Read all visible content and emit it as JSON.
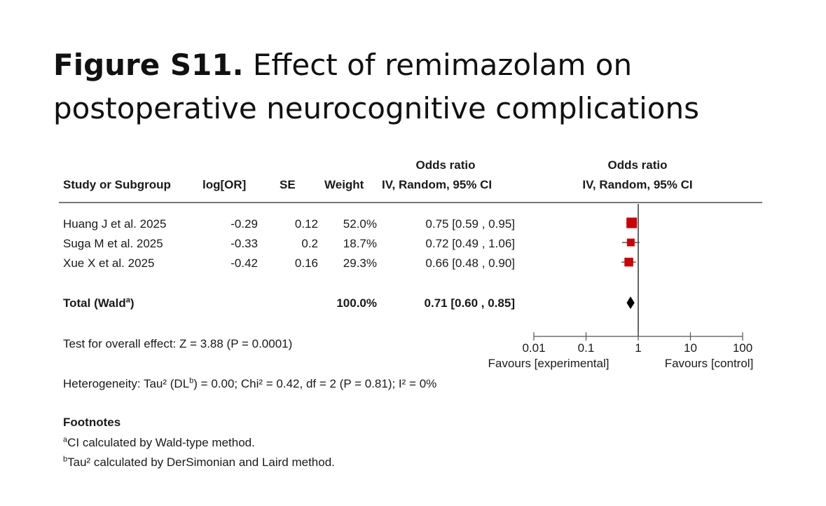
{
  "figure_title": {
    "label": "Figure S11.",
    "text": "Effect of remimazolam on postoperative neurocognitive complications"
  },
  "headers": {
    "study": "Study or Subgroup",
    "logor": "log[OR]",
    "se": "SE",
    "weight": "Weight",
    "or_line1": "Odds ratio",
    "or_line2": "IV, Random, 95% CI",
    "plot_line1": "Odds ratio",
    "plot_line2": "IV, Random, 95% CI"
  },
  "studies": [
    {
      "name": "Huang J et al. 2025",
      "logor": "-0.29",
      "se": "0.12",
      "weight": "52.0%",
      "ci_text": "0.75 [0.59 , 0.95]"
    },
    {
      "name": "Suga M et al. 2025",
      "logor": "-0.33",
      "se": "0.2",
      "weight": "18.7%",
      "ci_text": "0.72 [0.49 , 1.06]"
    },
    {
      "name": "Xue X et al. 2025",
      "logor": "-0.42",
      "se": "0.16",
      "weight": "29.3%",
      "ci_text": "0.66 [0.48 , 0.90]"
    }
  ],
  "total": {
    "label": "Total (Wald",
    "label_sup": "a",
    "label_close": ")",
    "weight": "100.0%",
    "ci_text": "0.71 [0.60 , 0.85]"
  },
  "overall_effect": "Test for overall effect: Z = 3.88 (P = 0.0001)",
  "heterogeneity": {
    "part1": "Heterogeneity: Tau² (DL",
    "sup": "b",
    "part2": ") = 0.00; Chi² = 0.42, df = 2 (P = 0.81); I² = 0%"
  },
  "footnotes": {
    "title": "Footnotes",
    "a_mark": "a",
    "a_text": "CI calculated by Wald-type method.",
    "b_mark": "b",
    "b_text": "Tau² calculated by DerSimonian and Laird method."
  },
  "axis": {
    "ticks": [
      "0.01",
      "0.1",
      "1",
      "10",
      "100"
    ],
    "favours_left": "Favours [experimental]",
    "favours_right": "Favours [control]"
  },
  "colors": {
    "study_marker": "#cc0000",
    "diamond": "#000000",
    "line": "#777777"
  },
  "chart_data": {
    "type": "forest",
    "scale": "log",
    "xlim": [
      0.01,
      100
    ],
    "ticks": [
      0.01,
      0.1,
      1,
      10,
      100
    ],
    "reference_line": 1,
    "studies": [
      {
        "name": "Huang J et al. 2025",
        "or": 0.75,
        "lo": 0.59,
        "hi": 0.95,
        "weight": 52.0
      },
      {
        "name": "Suga M et al. 2025",
        "or": 0.72,
        "lo": 0.49,
        "hi": 1.06,
        "weight": 18.7
      },
      {
        "name": "Xue X et al. 2025",
        "or": 0.66,
        "lo": 0.48,
        "hi": 0.9,
        "weight": 29.3
      }
    ],
    "pooled": {
      "name": "Total",
      "or": 0.71,
      "lo": 0.6,
      "hi": 0.85
    },
    "xlabel_left": "Favours [experimental]",
    "xlabel_right": "Favours [control]"
  }
}
